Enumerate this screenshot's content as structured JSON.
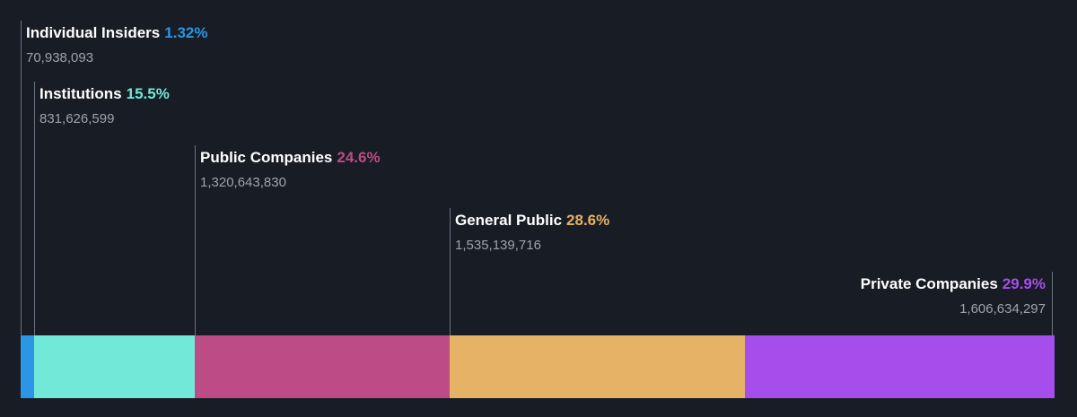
{
  "chart_data": {
    "type": "bar",
    "orientation": "horizontal-stacked",
    "title": "",
    "xlabel": "",
    "ylabel": "",
    "categories": [
      "Individual Insiders",
      "Institutions",
      "Public Companies",
      "General Public",
      "Private Companies"
    ],
    "series": [
      {
        "values": [
          1.32,
          15.5,
          24.6,
          28.6,
          29.9
        ],
        "percent_labels": [
          "1.32%",
          "15.5%",
          "24.6%",
          "28.6%",
          "29.9%"
        ],
        "counts": [
          "70,938,093",
          "831,626,599",
          "1,320,643,830",
          "1,535,139,716",
          "1,606,634,297"
        ]
      }
    ],
    "colors": [
      "#2b96e6",
      "#72e8d8",
      "#bd4b86",
      "#e6b266",
      "#a64eec"
    ]
  }
}
